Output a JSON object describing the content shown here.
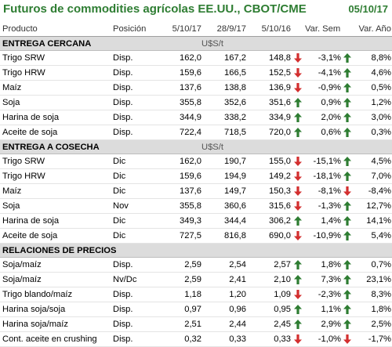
{
  "title": "Futuros de commodities agrícolas EE.UU., CBOT/CME",
  "date": "05/10/17",
  "columns": [
    "Producto",
    "Posición",
    "5/10/17",
    "28/9/17",
    "5/10/16",
    "Var. Sem.",
    "Var. Año"
  ],
  "colors": {
    "title": "#2e7d32",
    "up": "#2e7d32",
    "down": "#d32f2f",
    "section_bg": "#dcdcdc"
  },
  "sections": [
    {
      "name": "ENTREGA CERCANA",
      "unit": "U$S/t",
      "rows": [
        {
          "product": "Trigo SRW",
          "position": "Disp.",
          "v1": "162,0",
          "v2": "167,2",
          "v3": "148,8",
          "a1": "down",
          "sem": "-3,1%",
          "a2": "up",
          "year": "8,8%"
        },
        {
          "product": "Trigo HRW",
          "position": "Disp.",
          "v1": "159,6",
          "v2": "166,5",
          "v3": "152,5",
          "a1": "down",
          "sem": "-4,1%",
          "a2": "up",
          "year": "4,6%"
        },
        {
          "product": "Maíz",
          "position": "Disp.",
          "v1": "137,6",
          "v2": "138,8",
          "v3": "136,9",
          "a1": "down",
          "sem": "-0,9%",
          "a2": "up",
          "year": "0,5%"
        },
        {
          "product": "Soja",
          "position": "Disp.",
          "v1": "355,8",
          "v2": "352,6",
          "v3": "351,6",
          "a1": "up",
          "sem": "0,9%",
          "a2": "up",
          "year": "1,2%"
        },
        {
          "product": "Harina de soja",
          "position": "Disp.",
          "v1": "344,9",
          "v2": "338,2",
          "v3": "334,9",
          "a1": "up",
          "sem": "2,0%",
          "a2": "up",
          "year": "3,0%"
        },
        {
          "product": "Aceite de soja",
          "position": "Disp.",
          "v1": "722,4",
          "v2": "718,5",
          "v3": "720,0",
          "a1": "up",
          "sem": "0,6%",
          "a2": "up",
          "year": "0,3%"
        }
      ]
    },
    {
      "name": "ENTREGA A COSECHA",
      "unit": "U$S/t",
      "rows": [
        {
          "product": "Trigo SRW",
          "position": "Dic",
          "v1": "162,0",
          "v2": "190,7",
          "v3": "155,0",
          "a1": "down",
          "sem": "-15,1%",
          "a2": "up",
          "year": "4,5%"
        },
        {
          "product": "Trigo HRW",
          "position": "Dic",
          "v1": "159,6",
          "v2": "194,9",
          "v3": "149,2",
          "a1": "down",
          "sem": "-18,1%",
          "a2": "up",
          "year": "7,0%"
        },
        {
          "product": "Maíz",
          "position": "Dic",
          "v1": "137,6",
          "v2": "149,7",
          "v3": "150,3",
          "a1": "down",
          "sem": "-8,1%",
          "a2": "down",
          "year": "-8,4%"
        },
        {
          "product": "Soja",
          "position": "Nov",
          "v1": "355,8",
          "v2": "360,6",
          "v3": "315,6",
          "a1": "down",
          "sem": "-1,3%",
          "a2": "up",
          "year": "12,7%"
        },
        {
          "product": "Harina de soja",
          "position": "Dic",
          "v1": "349,3",
          "v2": "344,4",
          "v3": "306,2",
          "a1": "up",
          "sem": "1,4%",
          "a2": "up",
          "year": "14,1%"
        },
        {
          "product": "Aceite de soja",
          "position": "Dic",
          "v1": "727,5",
          "v2": "816,8",
          "v3": "690,0",
          "a1": "down",
          "sem": "-10,9%",
          "a2": "up",
          "year": "5,4%"
        }
      ]
    },
    {
      "name": "RELACIONES DE PRECIOS",
      "unit": "",
      "rows": [
        {
          "product": "Soja/maíz",
          "position": "Disp.",
          "v1": "2,59",
          "v2": "2,54",
          "v3": "2,57",
          "a1": "up",
          "sem": "1,8%",
          "a2": "up",
          "year": "0,7%"
        },
        {
          "product": "Soja/maíz",
          "position": "Nv/Dc",
          "v1": "2,59",
          "v2": "2,41",
          "v3": "2,10",
          "a1": "up",
          "sem": "7,3%",
          "a2": "up",
          "year": "23,1%"
        },
        {
          "product": "Trigo blando/maíz",
          "position": "Disp.",
          "v1": "1,18",
          "v2": "1,20",
          "v3": "1,09",
          "a1": "down",
          "sem": "-2,3%",
          "a2": "up",
          "year": "8,3%"
        },
        {
          "product": "Harina soja/soja",
          "position": "Disp.",
          "v1": "0,97",
          "v2": "0,96",
          "v3": "0,95",
          "a1": "up",
          "sem": "1,1%",
          "a2": "up",
          "year": "1,8%"
        },
        {
          "product": "Harina soja/maíz",
          "position": "Disp.",
          "v1": "2,51",
          "v2": "2,44",
          "v3": "2,45",
          "a1": "up",
          "sem": "2,9%",
          "a2": "up",
          "year": "2,5%"
        },
        {
          "product": "Cont. aceite en crushing",
          "position": "Disp.",
          "v1": "0,32",
          "v2": "0,33",
          "v3": "0,33",
          "a1": "down",
          "sem": "-1,0%",
          "a2": "down",
          "year": "-1,7%"
        }
      ]
    }
  ]
}
